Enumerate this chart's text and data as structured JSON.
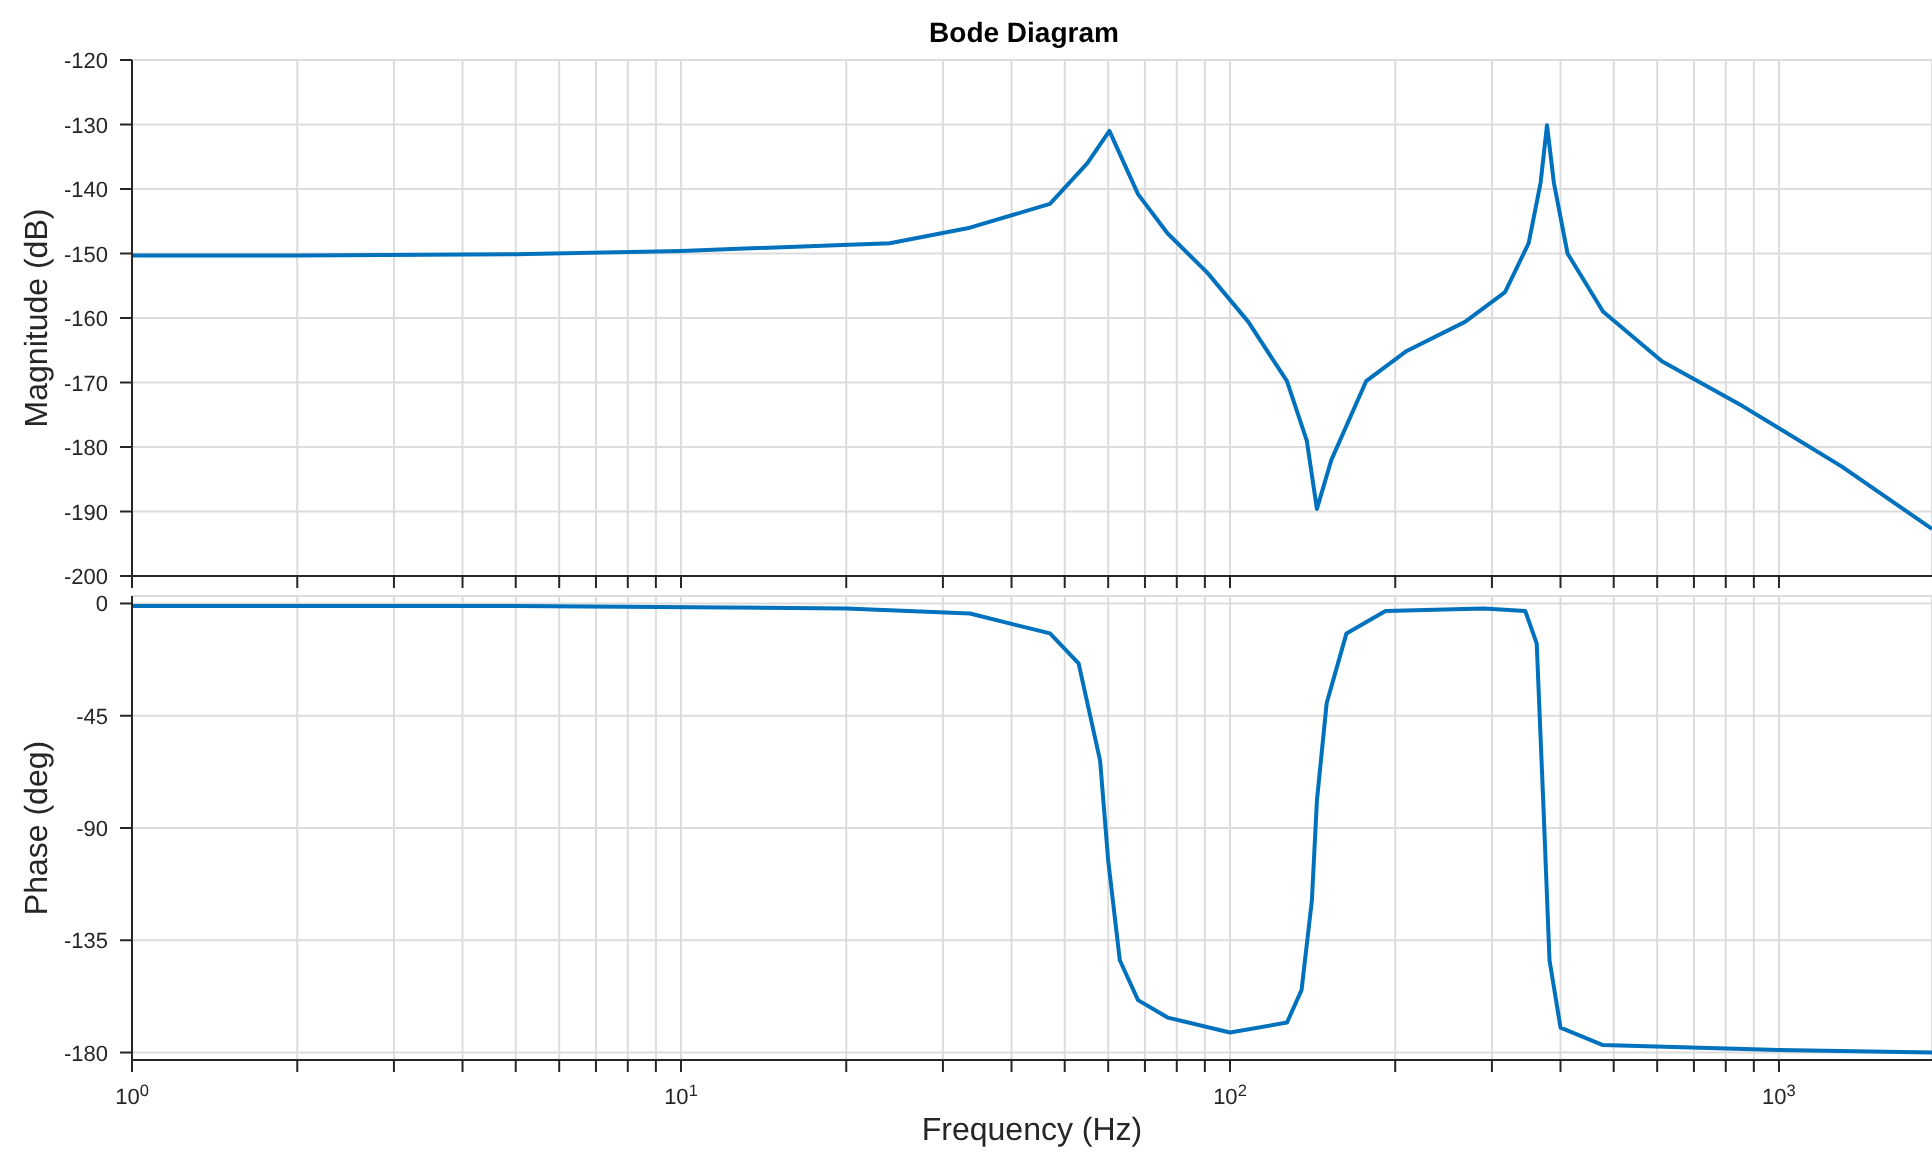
{
  "chart_data": [
    {
      "type": "line",
      "title": "Bode Diagram",
      "ylabel": "Magnitude (dB)",
      "xlim": [
        1,
        1900
      ],
      "ylim": [
        -200,
        -120
      ],
      "yticks": [
        -120,
        -130,
        -140,
        -150,
        -160,
        -170,
        -180,
        -190,
        -200
      ],
      "xticks": [
        {
          "value": 1,
          "label": null
        },
        {
          "value": 2,
          "label": null
        },
        {
          "value": 3,
          "label": null
        },
        {
          "value": 4,
          "label": null
        },
        {
          "value": 5,
          "label": null
        },
        {
          "value": 6,
          "label": null
        },
        {
          "value": 7,
          "label": null
        },
        {
          "value": 8,
          "label": null
        },
        {
          "value": 9,
          "label": null
        },
        {
          "value": 10,
          "label": null
        },
        {
          "value": 20,
          "label": null
        },
        {
          "value": 30,
          "label": null
        },
        {
          "value": 40,
          "label": null
        },
        {
          "value": 50,
          "label": null
        },
        {
          "value": 60,
          "label": null
        },
        {
          "value": 70,
          "label": null
        },
        {
          "value": 80,
          "label": null
        },
        {
          "value": 90,
          "label": null
        },
        {
          "value": 100,
          "label": null
        },
        {
          "value": 200,
          "label": null
        },
        {
          "value": 300,
          "label": null
        },
        {
          "value": 400,
          "label": null
        },
        {
          "value": 500,
          "label": null
        },
        {
          "value": 600,
          "label": null
        },
        {
          "value": 700,
          "label": null
        },
        {
          "value": 800,
          "label": null
        },
        {
          "value": 900,
          "label": null
        },
        {
          "value": 1000,
          "label": null
        }
      ],
      "log": "x",
      "grid": true,
      "tick_labels": "y",
      "marker": "none",
      "line_style": "solid",
      "series": [
        {
          "color": "#0072bd",
          "x": [
            1,
            2,
            5,
            10,
            24,
            33.6,
            47,
            55,
            60.3,
            68,
            77,
            91,
            108,
            127,
            138,
            144,
            153,
            177,
            209,
            268,
            317,
            350,
            368,
            378,
            389,
            412,
            478,
            612,
            860,
            1300,
            1900
          ],
          "values": [
            -150.3,
            -150.3,
            -150.1,
            -149.6,
            -148.4,
            -146,
            -142.3,
            -136,
            -131,
            -140.8,
            -146.9,
            -153,
            -160.6,
            -169.8,
            -179,
            -189.6,
            -182,
            -169.8,
            -165.2,
            -160.6,
            -156,
            -148.4,
            -139,
            -130.1,
            -139,
            -150,
            -159,
            -166.7,
            -173.7,
            -183,
            -192.7
          ]
        }
      ]
    },
    {
      "type": "line",
      "xlabel": "Frequency  (Hz)",
      "ylabel": "Phase (deg)",
      "xlim": [
        1,
        1900
      ],
      "ylim": [
        -183,
        3
      ],
      "yticks": [
        0,
        -45,
        -90,
        -135,
        -180
      ],
      "xticks": [
        {
          "value": 1,
          "label": "10$^{0}$"
        },
        {
          "value": 2,
          "label": null
        },
        {
          "value": 3,
          "label": null
        },
        {
          "value": 4,
          "label": null
        },
        {
          "value": 5,
          "label": null
        },
        {
          "value": 6,
          "label": null
        },
        {
          "value": 7,
          "label": null
        },
        {
          "value": 8,
          "label": null
        },
        {
          "value": 9,
          "label": null
        },
        {
          "value": 10,
          "label": "10$^{1}$"
        },
        {
          "value": 20,
          "label": null
        },
        {
          "value": 30,
          "label": null
        },
        {
          "value": 40,
          "label": null
        },
        {
          "value": 50,
          "label": null
        },
        {
          "value": 60,
          "label": null
        },
        {
          "value": 70,
          "label": null
        },
        {
          "value": 80,
          "label": null
        },
        {
          "value": 90,
          "label": null
        },
        {
          "value": 100,
          "label": "10$^{2}$"
        },
        {
          "value": 200,
          "label": null
        },
        {
          "value": 300,
          "label": null
        },
        {
          "value": 400,
          "label": null
        },
        {
          "value": 500,
          "label": null
        },
        {
          "value": 600,
          "label": null
        },
        {
          "value": 700,
          "label": null
        },
        {
          "value": 800,
          "label": null
        },
        {
          "value": 900,
          "label": null
        },
        {
          "value": 1000,
          "label": "10$^{3}$"
        }
      ],
      "log": "x",
      "grid": true,
      "marker": "none",
      "line_style": "solid",
      "series": [
        {
          "color": "#0072bd",
          "x": [
            1,
            5,
            20,
            33.6,
            47,
            53,
            58,
            60,
            63,
            68,
            77,
            100,
            127,
            135,
            141,
            144,
            150,
            163,
            192,
            290,
            345,
            362,
            372,
            382,
            400,
            478,
            1000,
            1900
          ],
          "values": [
            -1,
            -1,
            -2,
            -4,
            -12,
            -24,
            -63,
            -103,
            -143,
            -159,
            -166,
            -172,
            -168,
            -155,
            -119,
            -79,
            -40,
            -12,
            -3,
            -2,
            -3,
            -16,
            -79,
            -143,
            -170,
            -177,
            -179,
            -180
          ]
        }
      ]
    }
  ]
}
